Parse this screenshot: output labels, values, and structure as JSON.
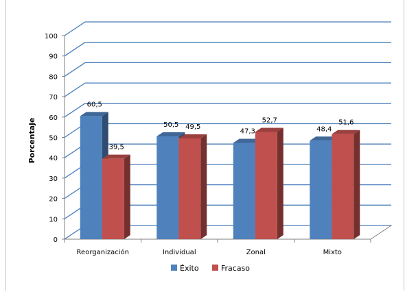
{
  "chart_data": {
    "type": "bar",
    "categories": [
      "Reorganización",
      "Individual",
      "Zonal",
      "Mixto"
    ],
    "series": [
      {
        "name": "Éxito",
        "values": [
          60.5,
          50.5,
          47.3,
          48.4
        ],
        "color": "#4f81bd"
      },
      {
        "name": "Fracaso",
        "values": [
          39.5,
          49.5,
          52.7,
          51.6
        ],
        "color": "#c0504d"
      }
    ],
    "data_labels": [
      [
        "60,5",
        "50,5",
        "47,3",
        "48,4"
      ],
      [
        "39,5",
        "49,5",
        "52,7",
        "51,6"
      ]
    ],
    "ylabel": "Porcentaje",
    "xlabel": "",
    "title": "",
    "ylim": [
      0,
      100
    ],
    "yticks": [
      "0",
      "10",
      "20",
      "30",
      "40",
      "50",
      "60",
      "70",
      "80",
      "90",
      "100"
    ],
    "grid": true,
    "legend": "bottom",
    "style": "3d-clustered-column"
  }
}
